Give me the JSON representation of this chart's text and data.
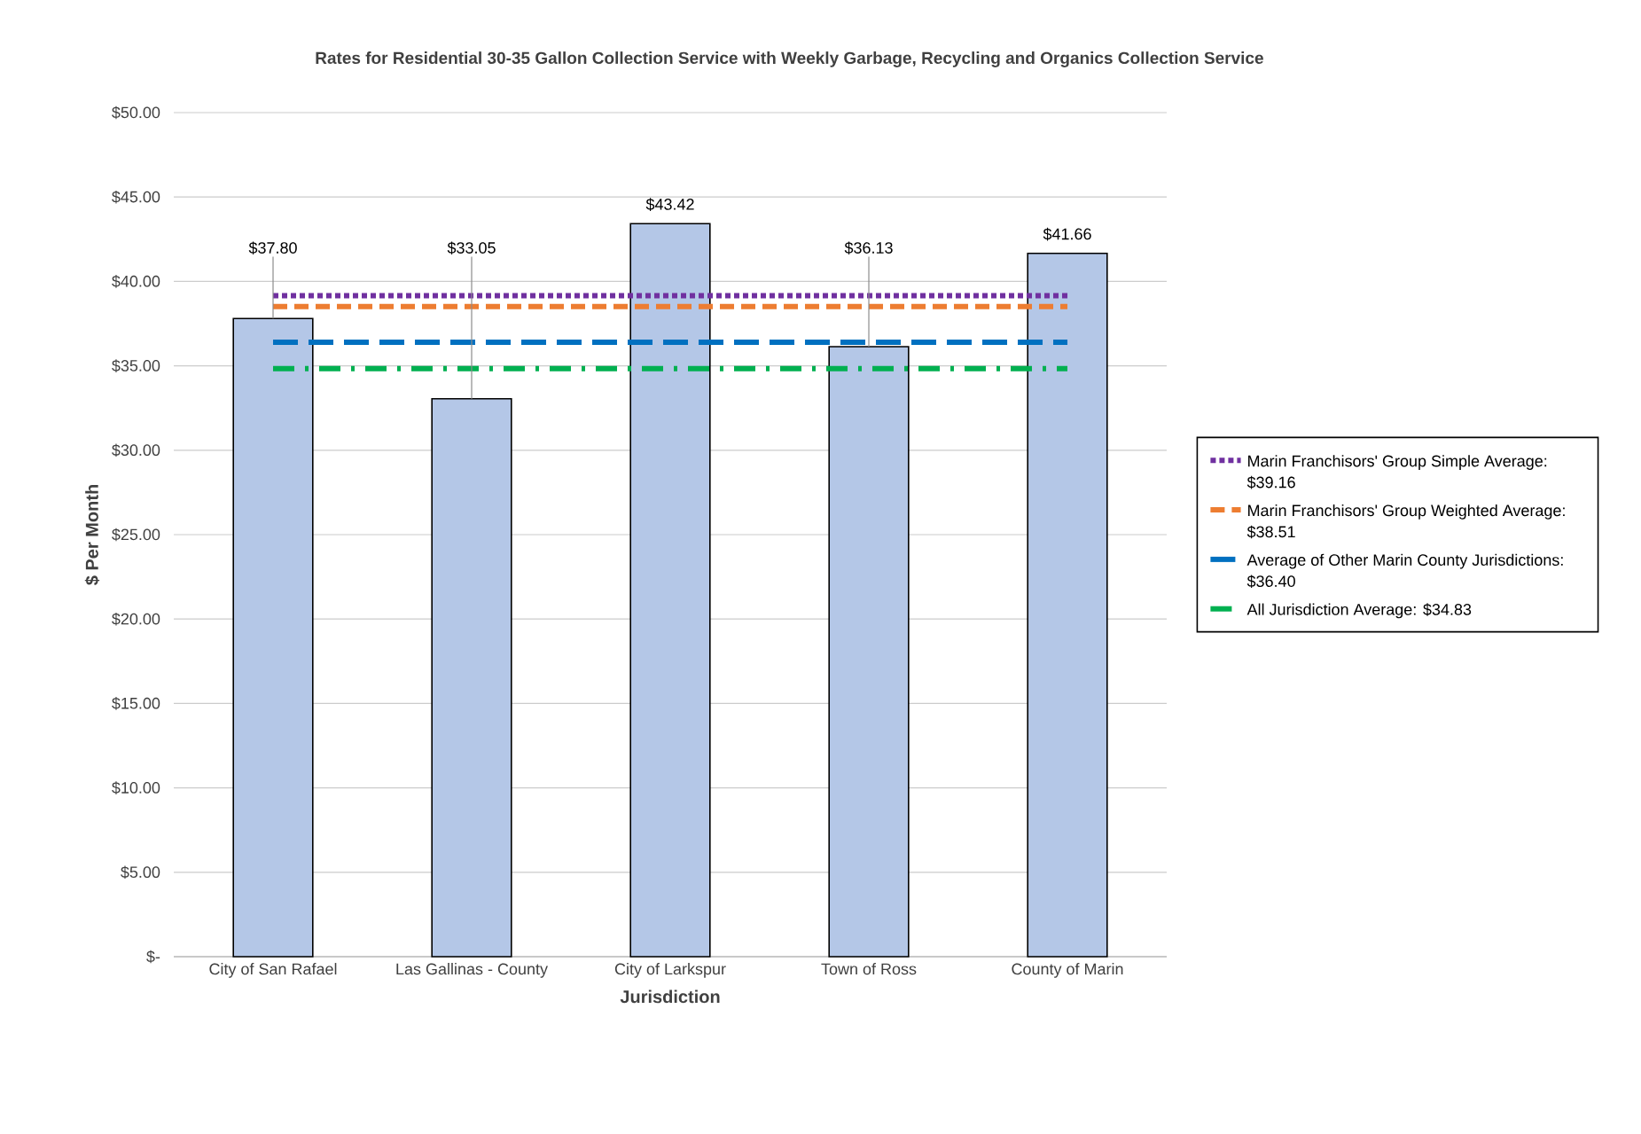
{
  "chart_data": {
    "type": "bar",
    "title": "Rates for Residential 30-35 Gallon Collection Service with Weekly Garbage, Recycling and Organics Collection Service",
    "xlabel": "Jurisdiction",
    "ylabel": "$ Per Month",
    "categories": [
      "City of San Rafael",
      "Las Gallinas - County",
      "City of Larkspur",
      "Town of Ross",
      "County of Marin"
    ],
    "ylim": [
      0,
      50
    ],
    "yticks": [
      {
        "value": 0,
        "label": "$-"
      },
      {
        "value": 5,
        "label": "$5.00"
      },
      {
        "value": 10,
        "label": "$10.00"
      },
      {
        "value": 15,
        "label": "$15.00"
      },
      {
        "value": 20,
        "label": "$20.00"
      },
      {
        "value": 25,
        "label": "$25.00"
      },
      {
        "value": 30,
        "label": "$30.00"
      },
      {
        "value": 35,
        "label": "$35.00"
      },
      {
        "value": 40,
        "label": "$40.00"
      },
      {
        "value": 45,
        "label": "$45.00"
      },
      {
        "value": 50,
        "label": "$50.00"
      }
    ],
    "grid": "y",
    "legend": "right",
    "series": [
      {
        "color": "#b4c7e7",
        "values": [
          37.8,
          33.05,
          43.42,
          36.13,
          41.66
        ],
        "value_labels": [
          "$37.80",
          "$33.05",
          "$43.42",
          "$36.13",
          "$41.66"
        ]
      },
      {
        "type": "line",
        "name": "Marin Franchisors' Group Simple Average: $39.16",
        "color": "#7030a0",
        "line_style": "dotted",
        "values": [
          39.16,
          39.16,
          39.16,
          39.16,
          39.16
        ]
      },
      {
        "type": "line",
        "name": "Marin Franchisors' Group Weighted Average: $38.51",
        "color": "#ed7d31",
        "line_style": "dashed",
        "values": [
          38.51,
          38.51,
          38.51,
          38.51,
          38.51
        ]
      },
      {
        "type": "line",
        "name": "Average of Other Marin County Jurisdictions: $36.40",
        "color": "#0070c0",
        "line_style": "dashed",
        "values": [
          36.4,
          36.4,
          36.4,
          36.4,
          36.4
        ]
      },
      {
        "type": "line",
        "name": "All Jurisdiction Average: $34.83",
        "color": "#00b050",
        "line_style": "dashed",
        "values": [
          34.83,
          34.83,
          34.83,
          34.83,
          34.83
        ]
      }
    ]
  }
}
